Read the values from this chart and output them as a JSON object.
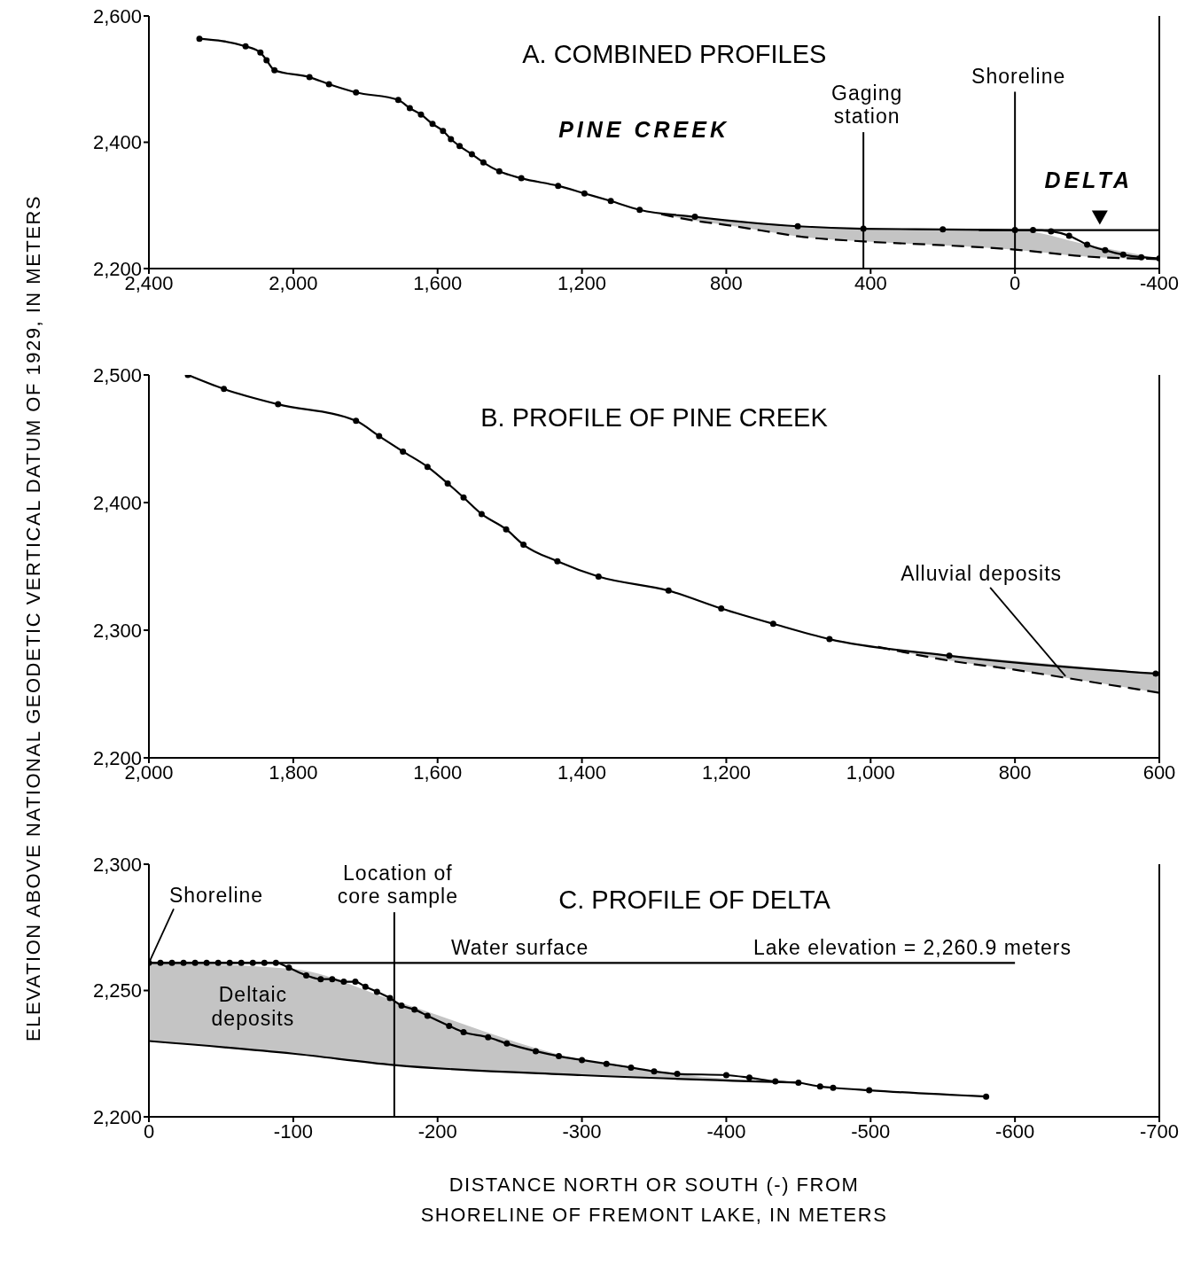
{
  "chart_data": [
    {
      "type": "line",
      "title": "A. COMBINED PROFILES",
      "xlim": [
        2400,
        -400
      ],
      "xticks": [
        {
          "value": 2400,
          "label": "2,400"
        },
        {
          "value": 2000,
          "label": "2,000"
        },
        {
          "value": 1600,
          "label": "1,600"
        },
        {
          "value": 1200,
          "label": "1,200"
        },
        800,
        400,
        0,
        -400
      ],
      "ylim": [
        2200,
        2600
      ],
      "yticks": [
        {
          "value": 2200,
          "label": "2,200"
        },
        {
          "value": 2400,
          "label": "2,400"
        },
        {
          "value": 2600,
          "label": "2,600"
        }
      ],
      "series": [
        {
          "color": "#000000",
          "marker": "circle",
          "line_style": "solid",
          "x": [
            2260,
            2132,
            2091,
            2074,
            2052,
            1955,
            1901,
            1826,
            1709,
            1677,
            1646,
            1614,
            1585,
            1563,
            1539,
            1505,
            1473,
            1429,
            1368,
            1266,
            1193,
            1120,
            1040,
            887,
            602,
            420,
            200,
            0,
            -50,
            -100,
            -150,
            -200,
            -250,
            -300,
            -350,
            -400
          ],
          "values": [
            2564,
            2552,
            2542,
            2530,
            2514,
            2503,
            2492,
            2479,
            2467,
            2454,
            2444,
            2429,
            2418,
            2405,
            2394,
            2381,
            2368,
            2354,
            2343,
            2331,
            2319,
            2307,
            2293,
            2282,
            2267,
            2263,
            2262,
            2261,
            2261,
            2259,
            2252,
            2238,
            2229,
            2222,
            2218,
            2216
          ]
        },
        {
          "color": "#000000",
          "marker": "none",
          "line_style": "dashed",
          "x": [
            980,
            900,
            800,
            700,
            600,
            420,
            200,
            0,
            -200,
            -400
          ],
          "values": [
            2286,
            2277,
            2269,
            2260,
            2251,
            2243,
            2237,
            2230,
            2219,
            2215
          ],
          "lower": [
            2286,
            2277,
            2269,
            2260,
            2251,
            2243,
            2237,
            2230,
            2219,
            2215
          ],
          "upper": [
            2287,
            2281,
            2276,
            2271,
            2267,
            2263,
            2262,
            2261,
            2238,
            2216
          ]
        },
        {
          "color": "#000000",
          "marker": "none",
          "line_style": "solid",
          "x": [
            100,
            -400
          ],
          "values": [
            2261,
            2261
          ]
        }
      ],
      "ref_lines": [
        {
          "axis": "x",
          "value": 420,
          "label": "Gaging station"
        },
        {
          "axis": "x",
          "value": 0,
          "label": "Shoreline"
        }
      ],
      "annotations": [
        "PINE CREEK",
        "DELTA"
      ]
    },
    {
      "type": "line",
      "title": "B. PROFILE OF PINE CREEK",
      "ylabel": "ELEVATION ABOVE NATIONAL GEODETIC VERTICAL DATUM OF 1929, IN METERS",
      "xlim": [
        2000,
        600
      ],
      "xticks": [
        {
          "value": 2000,
          "label": "2,000"
        },
        {
          "value": 1800,
          "label": "1,800"
        },
        {
          "value": 1600,
          "label": "1,600"
        },
        {
          "value": 1400,
          "label": "1,400"
        },
        {
          "value": 1200,
          "label": "1,200"
        },
        {
          "value": 1000,
          "label": "1,000"
        },
        800,
        600
      ],
      "ylim": [
        2200,
        2500
      ],
      "yticks": [
        {
          "value": 2200,
          "label": "2,200"
        },
        {
          "value": 2300,
          "label": "2,300"
        },
        {
          "value": 2400,
          "label": "2,400"
        },
        {
          "value": 2500,
          "label": "2,500"
        }
      ],
      "series": [
        {
          "color": "#000000",
          "marker": "circle",
          "line_style": "solid",
          "x": [
            1946,
            1896,
            1821,
            1713,
            1681,
            1648,
            1614,
            1586,
            1564,
            1539,
            1505,
            1481,
            1434,
            1377,
            1280,
            1207,
            1135,
            1057,
            891,
            605
          ],
          "values": [
            2500,
            2489,
            2477,
            2464,
            2452,
            2440,
            2428,
            2415,
            2404,
            2391,
            2379,
            2367,
            2354,
            2342,
            2331,
            2317,
            2305,
            2293,
            2280,
            2266
          ]
        },
        {
          "color": "#000000",
          "marker": "none",
          "line_style": "dashed",
          "x": [
            990,
            900,
            800,
            700,
            600
          ],
          "values": [
            2287,
            2277,
            2269,
            2260,
            2251
          ],
          "lower": [
            2287,
            2277,
            2269,
            2260,
            2251
          ],
          "upper": [
            2287,
            2281,
            2276,
            2271,
            2266
          ]
        }
      ],
      "annotations": [
        {
          "text": "Alluvial deposits",
          "x": 730,
          "y": 2264
        }
      ]
    },
    {
      "type": "line",
      "title": "C. PROFILE OF DELTA",
      "xlabel": "DISTANCE NORTH OR SOUTH (-) FROM SHORELINE OF FREMONT LAKE, IN METERS",
      "xlim": [
        0,
        -700
      ],
      "xticks": [
        0,
        -100,
        -200,
        -300,
        -400,
        -500,
        -600,
        -700
      ],
      "ylim": [
        2200,
        2300
      ],
      "yticks": [
        {
          "value": 2200,
          "label": "2,200"
        },
        {
          "value": 2250,
          "label": "2,250"
        },
        {
          "value": 2300,
          "label": "2,300"
        }
      ],
      "series": [
        {
          "color": "#000000",
          "marker": "circle",
          "line_style": "solid",
          "x": [
            0,
            -8,
            -16,
            -24,
            -32,
            -40,
            -48,
            -56,
            -64,
            -72,
            -80,
            -88,
            -97,
            -109,
            -119,
            -127,
            -135,
            -143,
            -150,
            -158,
            -167,
            -175,
            -184,
            -193,
            -208,
            -218,
            -235,
            -248,
            -268,
            -284,
            -300,
            -317,
            -334,
            -350,
            -366,
            -400,
            -416,
            -434,
            -450,
            -465,
            -474,
            -499,
            -580
          ],
          "values": [
            2261,
            2261,
            2261,
            2261,
            2261,
            2261,
            2261,
            2261,
            2261,
            2261,
            2261,
            2261,
            2259,
            2256,
            2254.5,
            2254.5,
            2253.5,
            2253.5,
            2251.5,
            2249.5,
            2247,
            2244,
            2242.5,
            2240,
            2236,
            2233.5,
            2231.5,
            2229,
            2226,
            2224,
            2222.5,
            2221,
            2219.5,
            2218,
            2217,
            2216.5,
            2215.5,
            2214,
            2213.5,
            2212,
            2211.5,
            2210.5,
            2208
          ]
        },
        {
          "color": "#000000",
          "marker": "none",
          "line_style": "solid",
          "x": [
            0,
            -100,
            -170,
            -300,
            -450
          ],
          "values": [
            2230,
            2225,
            2220.5,
            2216.5,
            2213.5
          ],
          "lower": [
            2230,
            2225,
            2220.5,
            2216.5,
            2213.5
          ],
          "upper": [
            2261,
            2258.5,
            2246,
            2222.5,
            2213.5
          ]
        },
        {
          "color": "#000000",
          "marker": "none",
          "line_style": "solid",
          "x": [
            0,
            -600
          ],
          "values": [
            2260.9,
            2260.9
          ]
        }
      ],
      "ref_lines": [
        {
          "axis": "x",
          "value": -170,
          "label": "Location of core sample"
        }
      ],
      "annotations": [
        {
          "text": "Shoreline",
          "x": 0,
          "y": 2260.9
        },
        "Deltaic deposits",
        {
          "text": "Water surface",
          "x": -257,
          "y": 2260.9
        },
        {
          "text": "Lake elevation = 2,260.9 meters",
          "x": -529,
          "y": 2260.9
        }
      ]
    }
  ]
}
